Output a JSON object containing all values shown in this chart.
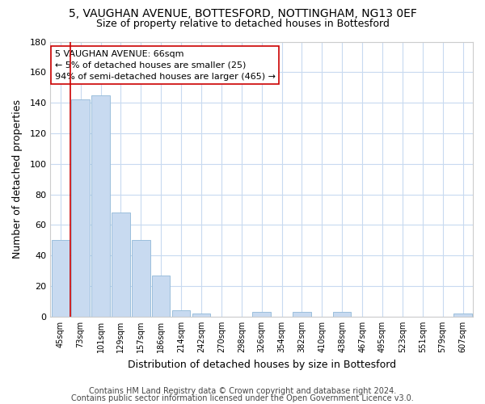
{
  "title": "5, VAUGHAN AVENUE, BOTTESFORD, NOTTINGHAM, NG13 0EF",
  "subtitle": "Size of property relative to detached houses in Bottesford",
  "xlabel": "Distribution of detached houses by size in Bottesford",
  "ylabel": "Number of detached properties",
  "bar_color": "#c8daf0",
  "bar_edge_color": "#9bbfdc",
  "background_color": "#ffffff",
  "grid_color": "#c8daf0",
  "categories": [
    "45sqm",
    "73sqm",
    "101sqm",
    "129sqm",
    "157sqm",
    "186sqm",
    "214sqm",
    "242sqm",
    "270sqm",
    "298sqm",
    "326sqm",
    "354sqm",
    "382sqm",
    "410sqm",
    "438sqm",
    "467sqm",
    "495sqm",
    "523sqm",
    "551sqm",
    "579sqm",
    "607sqm"
  ],
  "values": [
    50,
    142,
    145,
    68,
    50,
    27,
    4,
    2,
    0,
    0,
    3,
    0,
    3,
    0,
    3,
    0,
    0,
    0,
    0,
    0,
    2
  ],
  "ylim": [
    0,
    180
  ],
  "yticks": [
    0,
    20,
    40,
    60,
    80,
    100,
    120,
    140,
    160,
    180
  ],
  "property_line_x": 0.5,
  "property_line_color": "#cc0000",
  "annotation_text": "5 VAUGHAN AVENUE: 66sqm\n← 5% of detached houses are smaller (25)\n94% of semi-detached houses are larger (465) →",
  "annotation_box_color": "#ffffff",
  "annotation_box_edge_color": "#cc0000",
  "footer_line1": "Contains HM Land Registry data © Crown copyright and database right 2024.",
  "footer_line2": "Contains public sector information licensed under the Open Government Licence v3.0.",
  "title_fontsize": 10,
  "subtitle_fontsize": 9,
  "annotation_fontsize": 8,
  "footer_fontsize": 7
}
